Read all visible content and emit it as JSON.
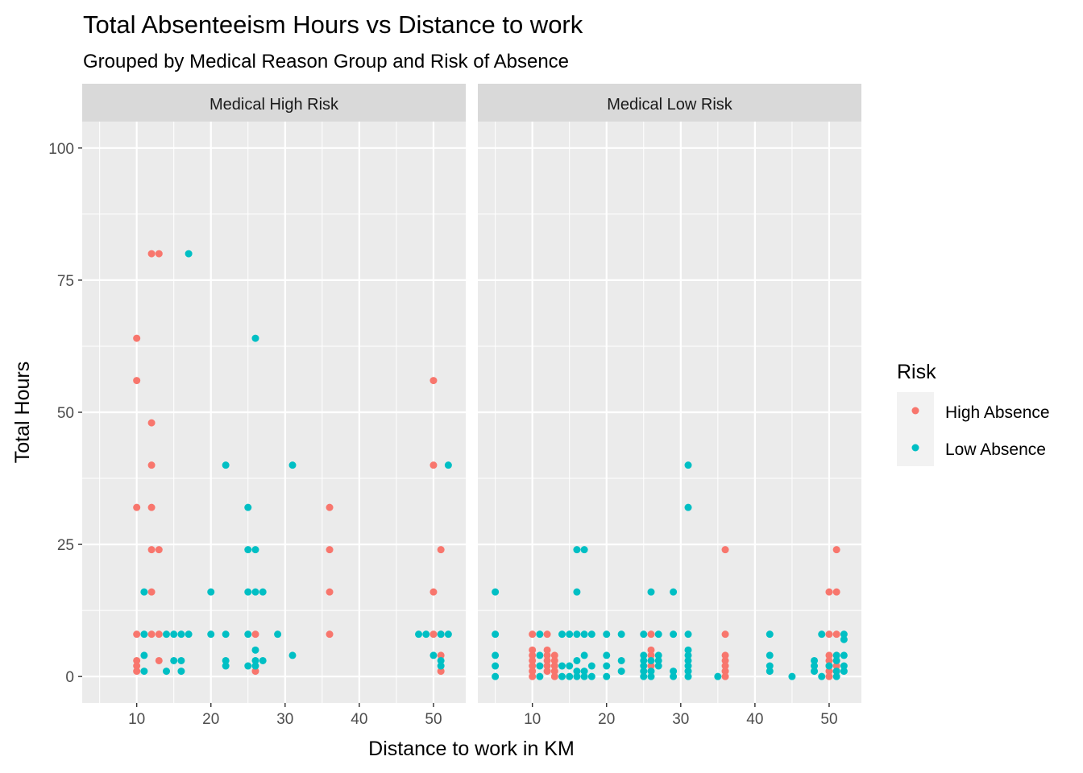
{
  "chart_data": {
    "type": "scatter",
    "title": "Total Absenteeism Hours vs Distance to work",
    "subtitle": "Grouped by Medical Reason Group and Risk of Absence",
    "xlabel": "Distance to work in KM",
    "ylabel": "Total Hours",
    "xlim": [
      2.65,
      54.35
    ],
    "ylim": [
      -5,
      105
    ],
    "x_ticks": [
      10,
      20,
      30,
      40,
      50
    ],
    "y_ticks": [
      0,
      25,
      50,
      75,
      100
    ],
    "grid": true,
    "legend": {
      "title": "Risk",
      "position": "right",
      "entries": [
        "High Absence",
        "Low Absence"
      ]
    },
    "colors": {
      "High Absence": "#F8766D",
      "Low Absence": "#00BFC4"
    },
    "facets": [
      {
        "label": "Medical High Risk",
        "series": [
          {
            "name": "High Absence",
            "points": [
              [
                10,
                64
              ],
              [
                10,
                56
              ],
              [
                10,
                32
              ],
              [
                10,
                8
              ],
              [
                10,
                3
              ],
              [
                10,
                2
              ],
              [
                10,
                1
              ],
              [
                12,
                80
              ],
              [
                13,
                80
              ],
              [
                12,
                48
              ],
              [
                12,
                40
              ],
              [
                12,
                32
              ],
              [
                12,
                24
              ],
              [
                13,
                24
              ],
              [
                12,
                16
              ],
              [
                12,
                8
              ],
              [
                13,
                8
              ],
              [
                13,
                3
              ],
              [
                26,
                8
              ],
              [
                26,
                1
              ],
              [
                36,
                32
              ],
              [
                36,
                24
              ],
              [
                36,
                16
              ],
              [
                36,
                8
              ],
              [
                50,
                56
              ],
              [
                50,
                40
              ],
              [
                50,
                16
              ],
              [
                50,
                8
              ],
              [
                51,
                24
              ],
              [
                51,
                8
              ],
              [
                51,
                4
              ],
              [
                51,
                1
              ]
            ]
          },
          {
            "name": "Low Absence",
            "points": [
              [
                17,
                80
              ],
              [
                26,
                64
              ],
              [
                22,
                40
              ],
              [
                31,
                40
              ],
              [
                52,
                40
              ],
              [
                25,
                32
              ],
              [
                25,
                24
              ],
              [
                26,
                24
              ],
              [
                11,
                16
              ],
              [
                20,
                16
              ],
              [
                25,
                16
              ],
              [
                26,
                16
              ],
              [
                27,
                16
              ],
              [
                11,
                8
              ],
              [
                14,
                8
              ],
              [
                15,
                8
              ],
              [
                16,
                8
              ],
              [
                17,
                8
              ],
              [
                20,
                8
              ],
              [
                22,
                8
              ],
              [
                25,
                8
              ],
              [
                29,
                8
              ],
              [
                48,
                8
              ],
              [
                49,
                8
              ],
              [
                51,
                8
              ],
              [
                52,
                8
              ],
              [
                11,
                4
              ],
              [
                26,
                5
              ],
              [
                31,
                4
              ],
              [
                50,
                4
              ],
              [
                15,
                3
              ],
              [
                16,
                3
              ],
              [
                22,
                3
              ],
              [
                26,
                3
              ],
              [
                27,
                3
              ],
              [
                51,
                3
              ],
              [
                11,
                1
              ],
              [
                14,
                1
              ],
              [
                16,
                1
              ],
              [
                22,
                2
              ],
              [
                25,
                2
              ],
              [
                26,
                2
              ],
              [
                51,
                2
              ]
            ]
          }
        ]
      },
      {
        "label": "Medical Low Risk",
        "series": [
          {
            "name": "High Absence",
            "points": [
              [
                10,
                8
              ],
              [
                10,
                5
              ],
              [
                10,
                4
              ],
              [
                10,
                3
              ],
              [
                10,
                2
              ],
              [
                10,
                1
              ],
              [
                10,
                0
              ],
              [
                12,
                8
              ],
              [
                12,
                5
              ],
              [
                12,
                4
              ],
              [
                12,
                3
              ],
              [
                12,
                2
              ],
              [
                12,
                1
              ],
              [
                13,
                4
              ],
              [
                13,
                3
              ],
              [
                13,
                2
              ],
              [
                13,
                1
              ],
              [
                13,
                0
              ],
              [
                26,
                8
              ],
              [
                26,
                5
              ],
              [
                26,
                4
              ],
              [
                26,
                2
              ],
              [
                36,
                24
              ],
              [
                36,
                8
              ],
              [
                36,
                4
              ],
              [
                36,
                3
              ],
              [
                36,
                2
              ],
              [
                36,
                1
              ],
              [
                36,
                0
              ],
              [
                50,
                16
              ],
              [
                50,
                8
              ],
              [
                50,
                4
              ],
              [
                50,
                3
              ],
              [
                50,
                2
              ],
              [
                50,
                1
              ],
              [
                50,
                0
              ],
              [
                51,
                24
              ],
              [
                51,
                16
              ],
              [
                51,
                8
              ],
              [
                51,
                4
              ],
              [
                51,
                3
              ],
              [
                51,
                2
              ],
              [
                51,
                1
              ]
            ]
          },
          {
            "name": "Low Absence",
            "points": [
              [
                31,
                40
              ],
              [
                31,
                32
              ],
              [
                16,
                24
              ],
              [
                17,
                24
              ],
              [
                5,
                16
              ],
              [
                16,
                16
              ],
              [
                26,
                16
              ],
              [
                29,
                16
              ],
              [
                5,
                8
              ],
              [
                11,
                8
              ],
              [
                14,
                8
              ],
              [
                15,
                8
              ],
              [
                16,
                8
              ],
              [
                17,
                8
              ],
              [
                18,
                8
              ],
              [
                20,
                8
              ],
              [
                22,
                8
              ],
              [
                25,
                8
              ],
              [
                27,
                8
              ],
              [
                29,
                8
              ],
              [
                31,
                8
              ],
              [
                42,
                8
              ],
              [
                49,
                8
              ],
              [
                52,
                8
              ],
              [
                5,
                4
              ],
              [
                5,
                2
              ],
              [
                5,
                0
              ],
              [
                11,
                4
              ],
              [
                11,
                2
              ],
              [
                11,
                0
              ],
              [
                14,
                2
              ],
              [
                14,
                0
              ],
              [
                15,
                2
              ],
              [
                15,
                0
              ],
              [
                16,
                3
              ],
              [
                16,
                1
              ],
              [
                16,
                0
              ],
              [
                17,
                4
              ],
              [
                17,
                1
              ],
              [
                17,
                0
              ],
              [
                18,
                2
              ],
              [
                18,
                0
              ],
              [
                20,
                4
              ],
              [
                20,
                2
              ],
              [
                20,
                0
              ],
              [
                22,
                3
              ],
              [
                22,
                1
              ],
              [
                25,
                4
              ],
              [
                25,
                3
              ],
              [
                25,
                2
              ],
              [
                25,
                1
              ],
              [
                25,
                0
              ],
              [
                26,
                3
              ],
              [
                26,
                1
              ],
              [
                26,
                0
              ],
              [
                27,
                4
              ],
              [
                27,
                3
              ],
              [
                27,
                2
              ],
              [
                29,
                1
              ],
              [
                29,
                0
              ],
              [
                31,
                5
              ],
              [
                31,
                4
              ],
              [
                31,
                3
              ],
              [
                31,
                2
              ],
              [
                31,
                1
              ],
              [
                31,
                0
              ],
              [
                35,
                0
              ],
              [
                42,
                4
              ],
              [
                42,
                2
              ],
              [
                42,
                1
              ],
              [
                45,
                0
              ],
              [
                48,
                3
              ],
              [
                48,
                2
              ],
              [
                48,
                1
              ],
              [
                49,
                0
              ],
              [
                50,
                2
              ],
              [
                51,
                4
              ],
              [
                51,
                3
              ],
              [
                51,
                1
              ],
              [
                51,
                0
              ],
              [
                52,
                7
              ],
              [
                52,
                4
              ],
              [
                52,
                2
              ],
              [
                52,
                1
              ]
            ]
          }
        ]
      }
    ]
  }
}
